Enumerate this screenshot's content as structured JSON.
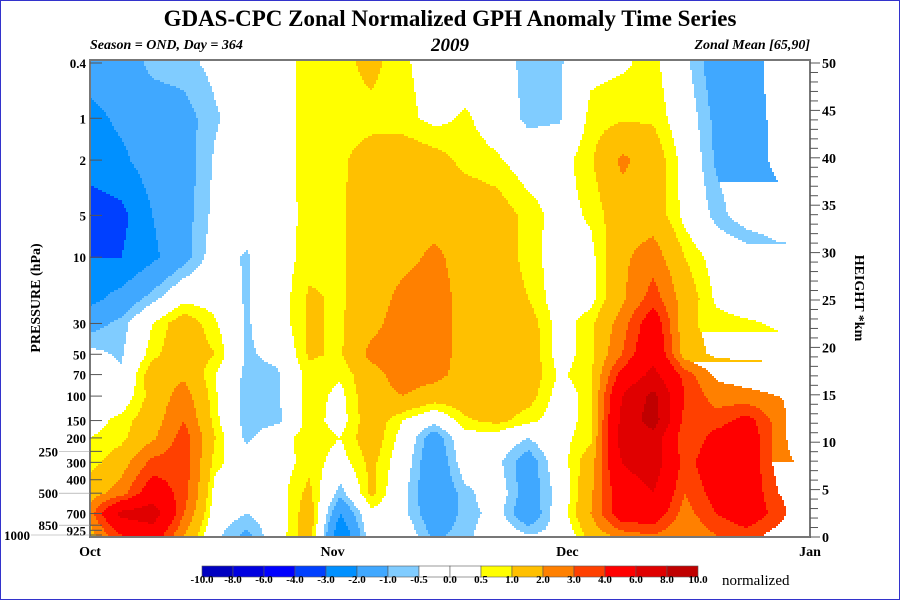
{
  "title": "GDAS-CPC Zonal Normalized GPH Anomaly Time Series",
  "subtitle_left": "Season = OND, Day = 364",
  "subtitle_center": "2009",
  "subtitle_right": "Zonal Mean [65,90]",
  "chart_data": {
    "type": "heatmap",
    "subtype": "filled-contour",
    "ylabel": "PRESSURE (hPa)",
    "y2label": "HEIGHT *km",
    "y_scale": "log",
    "y_reversed": true,
    "ylim": [
      1000,
      0.4
    ],
    "y_ticks": [
      "0.4",
      "1",
      "2",
      "5",
      "10",
      "30",
      "50",
      "70",
      "100",
      "150",
      "200",
      "250",
      "300",
      "400",
      "500",
      "700",
      "850",
      "925",
      "1000"
    ],
    "y2lim": [
      0,
      50
    ],
    "y2_ticks": [
      "0",
      "5",
      "10",
      "15",
      "20",
      "25",
      "30",
      "35",
      "40",
      "45",
      "50"
    ],
    "x_ticks": [
      {
        "label": "Oct",
        "date": "2009-10-01"
      },
      {
        "label": "Nov",
        "date": "2009-11-01"
      },
      {
        "label": "Dec",
        "date": "2009-12-01"
      },
      {
        "label": "Jan",
        "date": "2010-01-01"
      }
    ],
    "colorbar": {
      "label": "normalized",
      "levels": [
        "-10.0",
        "-8.0",
        "-6.0",
        "-4.0",
        "-3.0",
        "-2.0",
        "-1.0",
        "-0.5",
        "0.0",
        "0.5",
        "1.0",
        "2.0",
        "3.0",
        "4.0",
        "6.0",
        "8.0",
        "10.0"
      ],
      "colors": [
        "#0000c0",
        "#0000e0",
        "#0000ff",
        "#0040ff",
        "#0090ff",
        "#40a8ff",
        "#80ccff",
        "#ffffff",
        "#ffffff",
        "#ffff00",
        "#ffc000",
        "#ff8000",
        "#ff4000",
        "#ff0000",
        "#e00000",
        "#c00000"
      ]
    },
    "x": [
      "2009-10-01",
      "2009-10-05",
      "2009-10-09",
      "2009-10-13",
      "2009-10-17",
      "2009-10-21",
      "2009-10-25",
      "2009-10-29",
      "2009-11-02",
      "2009-11-06",
      "2009-11-10",
      "2009-11-14",
      "2009-11-18",
      "2009-11-22",
      "2009-11-26",
      "2009-11-30",
      "2009-12-04",
      "2009-12-08",
      "2009-12-12",
      "2009-12-16",
      "2009-12-20",
      "2009-12-24",
      "2009-12-28",
      "2009-12-30"
    ],
    "pressure_levels": [
      0.4,
      1,
      2,
      5,
      10,
      20,
      30,
      50,
      70,
      100,
      150,
      200,
      300,
      500,
      700,
      1000
    ],
    "values": [
      [
        -1.5,
        -1.5,
        -0.8,
        -0.7,
        -0.3,
        0,
        0.1,
        0.8,
        0.8,
        1.2,
        0.6,
        0.2,
        0.1,
        0,
        -0.8,
        -0.6,
        0.3,
        0.4,
        0.7,
        -0.3,
        -1.5,
        -1.5,
        -2.5,
        -2.5
      ],
      [
        -2.3,
        -1.8,
        -1.5,
        -1.3,
        -0.6,
        0,
        0.1,
        0.8,
        0.8,
        0.8,
        0.7,
        0.3,
        0.6,
        0.1,
        -0.7,
        -0.6,
        0.7,
        0.9,
        0.9,
        0,
        -1.2,
        -1.5,
        -2.3,
        -2.3
      ],
      [
        -2.6,
        -2.2,
        -1.5,
        -1.4,
        -0.4,
        0,
        0.1,
        0.8,
        0.9,
        1.3,
        1.5,
        1.3,
        0.8,
        0.6,
        0.1,
        0.2,
        0.9,
        2.2,
        1.5,
        0.2,
        -1.1,
        -1.6,
        -2.2,
        -2.2
      ],
      [
        -3.5,
        -3.3,
        -2.0,
        -1.3,
        -0.3,
        0,
        0,
        0.8,
        0.9,
        1.5,
        1.6,
        1.6,
        1.6,
        1.4,
        0.8,
        0.2,
        0.6,
        1.5,
        1.5,
        0.3,
        -0.7,
        -1.5,
        -1.7,
        -1.7
      ],
      [
        -3,
        -3,
        -2.2,
        -1.3,
        -0.1,
        -0.6,
        0.1,
        0.8,
        0.9,
        1.5,
        1.7,
        2.2,
        1.6,
        1.4,
        0.8,
        0.1,
        0.3,
        1.8,
        2.5,
        1.0,
        0.2,
        0,
        -0.6,
        -0.7
      ],
      [
        -2.3,
        -1.6,
        -0.7,
        0.3,
        0.2,
        -0.6,
        0.1,
        1.1,
        0.9,
        1.5,
        2.3,
        2.5,
        1.6,
        1.5,
        1.0,
        0.1,
        0.3,
        1.8,
        3.5,
        1.5,
        0.4,
        0.1,
        0,
        -0.1
      ],
      [
        -1.3,
        -0.8,
        0.5,
        1.5,
        0.6,
        -0.6,
        0.1,
        1.1,
        0.9,
        1.7,
        2.5,
        2.5,
        1.6,
        1.6,
        1.4,
        0.2,
        0.8,
        2.5,
        5.0,
        1.2,
        0.7,
        0.6,
        0.4,
        0.4
      ],
      [
        -0.3,
        -0.6,
        0.8,
        1.6,
        1.0,
        -0.6,
        -0.3,
        1.1,
        0.9,
        2.3,
        2.6,
        2.5,
        1.6,
        1.6,
        1.5,
        0.2,
        0.8,
        3.0,
        5.5,
        1.5,
        0.8,
        0.8,
        0.8,
        0.8
      ],
      [
        0,
        -0.4,
        1.5,
        1.8,
        0.5,
        -0.7,
        -0.6,
        0.8,
        0.6,
        1.6,
        2.5,
        2.3,
        1.6,
        1.5,
        1.5,
        0.4,
        0.8,
        4.5,
        6.5,
        3.5,
        1.8,
        1.5,
        1.3,
        1.3
      ],
      [
        0.2,
        0,
        1.3,
        2.5,
        0.6,
        -0.8,
        -0.6,
        0.8,
        0.3,
        1.6,
        2.0,
        1.5,
        1.5,
        1.5,
        1.3,
        0.2,
        0.7,
        6,
        8.5,
        4,
        2.5,
        2.3,
        2.0,
        1.8
      ],
      [
        0.2,
        0.7,
        1.5,
        3.0,
        0.7,
        -0.8,
        -0.7,
        0.8,
        0.2,
        1.5,
        0.5,
        -0.3,
        0.9,
        1.2,
        0.7,
        0.1,
        0.8,
        6.5,
        9,
        3.5,
        3.5,
        4.5,
        2.5,
        1.5
      ],
      [
        0.5,
        0.8,
        1.8,
        3.5,
        1.0,
        -0.7,
        0.2,
        0.8,
        0.5,
        1.5,
        0.2,
        -1.5,
        0.2,
        0.1,
        -0.5,
        0.3,
        0.8,
        7,
        7,
        3,
        4.5,
        5,
        2.5,
        1.5
      ],
      [
        0.7,
        1.5,
        3.3,
        3.5,
        0.7,
        0,
        0.1,
        0.8,
        0.2,
        1.2,
        0,
        -1.8,
        0,
        -0.3,
        -1.5,
        0.1,
        1.5,
        6,
        7,
        3.5,
        5,
        5,
        2.5,
        2
      ],
      [
        1.5,
        2.5,
        5,
        3.5,
        0.2,
        0,
        0.2,
        1.2,
        -0.8,
        1.2,
        -0.3,
        -1.8,
        -0.7,
        0,
        -1.5,
        -0.2,
        1.8,
        5,
        6,
        3,
        4.5,
        5,
        3,
        2.5
      ],
      [
        2.5,
        6.5,
        7,
        3,
        0,
        -0.5,
        0,
        1.5,
        -2,
        0.3,
        -0.3,
        -1.6,
        -0.8,
        -0.2,
        -1.7,
        0,
        2,
        5,
        5,
        2.5,
        4,
        5,
        3.5,
        2.5
      ],
      [
        1.5,
        4,
        5,
        2,
        -0.3,
        -1.2,
        0.1,
        1.5,
        -3,
        0.1,
        0.1,
        -1.2,
        -0.7,
        0.1,
        -0.5,
        -0.3,
        1.3,
        2.5,
        3,
        2,
        3,
        3.5,
        2.5,
        2
      ]
    ]
  }
}
